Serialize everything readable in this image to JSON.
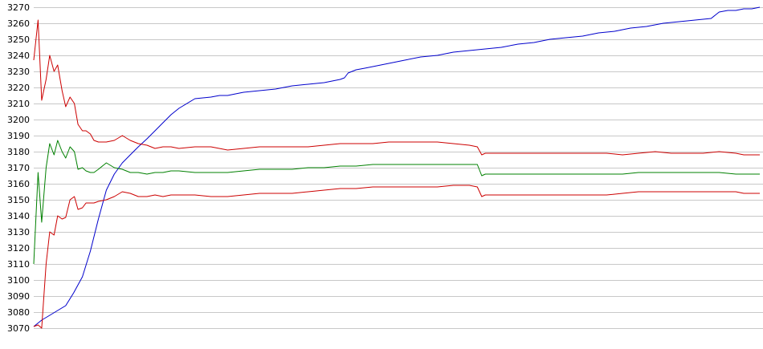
{
  "chart_data": {
    "type": "line",
    "title": "",
    "xlabel": "",
    "ylabel": "",
    "ylim": [
      3070,
      3270
    ],
    "y_ticks": [
      3070,
      3080,
      3090,
      3100,
      3110,
      3120,
      3130,
      3140,
      3150,
      3160,
      3170,
      3180,
      3190,
      3200,
      3210,
      3220,
      3230,
      3240,
      3250,
      3260,
      3270
    ],
    "xlim": [
      0,
      100
    ],
    "grid": true,
    "legend": "none",
    "series": [
      {
        "color": "#0000cc",
        "x": [
          0,
          1.1,
          2.2,
          3.3,
          4.4,
          5.5,
          6.7,
          7.8,
          8.9,
          10.0,
          11.1,
          12.2,
          13.3,
          14.4,
          15.6,
          16.7,
          17.8,
          18.9,
          20.0,
          22.2,
          24.4,
          25.6,
          26.7,
          27.8,
          28.9,
          31.1,
          33.3,
          35.6,
          37.8,
          40.0,
          42.2,
          42.8,
          43.3,
          44.4,
          45.6,
          46.7,
          48.9,
          51.1,
          53.3,
          55.6,
          57.8,
          60.0,
          62.2,
          64.4,
          66.7,
          68.9,
          71.1,
          73.3,
          75.6,
          77.8,
          80.0,
          82.2,
          84.4,
          86.7,
          88.9,
          91.1,
          93.3,
          94.4,
          95.6,
          96.7,
          97.8,
          98.9,
          100
        ],
        "values": [
          3071,
          3075,
          3078,
          3081,
          3084,
          3092,
          3102,
          3118,
          3138,
          3156,
          3166,
          3173,
          3178,
          3183,
          3188,
          3193,
          3198,
          3203,
          3207,
          3213,
          3214,
          3215,
          3215,
          3216,
          3217,
          3218,
          3219,
          3221,
          3222,
          3223,
          3225,
          3226,
          3229,
          3231,
          3232,
          3233,
          3235,
          3237,
          3239,
          3240,
          3242,
          3243,
          3244,
          3245,
          3247,
          3248,
          3250,
          3251,
          3252,
          3254,
          3255,
          3257,
          3258,
          3260,
          3261,
          3262,
          3263,
          3267,
          3268,
          3268,
          3269,
          3269,
          3270
        ]
      },
      {
        "color": "#cc0000",
        "x": [
          0,
          0.6,
          1.1,
          1.7,
          2.2,
          2.8,
          3.3,
          3.9,
          4.4,
          5.0,
          5.6,
          6.1,
          6.7,
          7.2,
          7.8,
          8.3,
          8.9,
          10.0,
          11.1,
          12.2,
          13.3,
          14.4,
          15.6,
          16.7,
          17.8,
          18.9,
          20.0,
          22.2,
          24.4,
          26.7,
          28.9,
          31.1,
          33.3,
          35.6,
          37.8,
          40.0,
          42.2,
          44.4,
          46.7,
          48.9,
          51.1,
          53.3,
          55.6,
          57.8,
          60.0,
          61.1,
          61.7,
          62.2,
          63.3,
          65.6,
          67.8,
          70.0,
          72.2,
          74.4,
          76.7,
          78.9,
          81.1,
          83.3,
          85.6,
          87.8,
          90.0,
          92.2,
          94.4,
          96.7,
          97.8,
          98.9,
          100
        ],
        "values": [
          3237,
          3262,
          3212,
          3225,
          3240,
          3230,
          3234,
          3218,
          3208,
          3214,
          3210,
          3197,
          3193,
          3193,
          3191,
          3187,
          3186,
          3186,
          3187,
          3190,
          3187,
          3185,
          3184,
          3182,
          3183,
          3183,
          3182,
          3183,
          3183,
          3181,
          3182,
          3183,
          3183,
          3183,
          3183,
          3184,
          3185,
          3185,
          3185,
          3186,
          3186,
          3186,
          3186,
          3185,
          3184,
          3183,
          3178,
          3179,
          3179,
          3179,
          3179,
          3179,
          3179,
          3179,
          3179,
          3179,
          3178,
          3179,
          3180,
          3179,
          3179,
          3179,
          3180,
          3179,
          3178,
          3178,
          3178
        ]
      },
      {
        "color": "#008000",
        "x": [
          0,
          0.6,
          1.1,
          1.7,
          2.2,
          2.8,
          3.3,
          3.9,
          4.4,
          5.0,
          5.6,
          6.1,
          6.7,
          7.2,
          7.8,
          8.3,
          8.9,
          10.0,
          11.1,
          12.2,
          13.3,
          14.4,
          15.6,
          16.7,
          17.8,
          18.9,
          20.0,
          22.2,
          24.4,
          26.7,
          28.9,
          31.1,
          33.3,
          35.6,
          37.8,
          40.0,
          42.2,
          44.4,
          46.7,
          48.9,
          51.1,
          53.3,
          55.6,
          57.8,
          60.0,
          61.1,
          61.7,
          62.2,
          63.3,
          65.6,
          67.8,
          70.0,
          72.2,
          74.4,
          76.7,
          78.9,
          81.1,
          83.3,
          85.6,
          87.8,
          90.0,
          92.2,
          94.4,
          96.7,
          97.8,
          98.9,
          100
        ],
        "values": [
          3110,
          3167,
          3136,
          3170,
          3185,
          3178,
          3187,
          3180,
          3176,
          3183,
          3180,
          3169,
          3170,
          3168,
          3167,
          3167,
          3169,
          3173,
          3170,
          3169,
          3167,
          3167,
          3166,
          3167,
          3167,
          3168,
          3168,
          3167,
          3167,
          3167,
          3168,
          3169,
          3169,
          3169,
          3170,
          3170,
          3171,
          3171,
          3172,
          3172,
          3172,
          3172,
          3172,
          3172,
          3172,
          3172,
          3165,
          3166,
          3166,
          3166,
          3166,
          3166,
          3166,
          3166,
          3166,
          3166,
          3166,
          3167,
          3167,
          3167,
          3167,
          3167,
          3167,
          3166,
          3166,
          3166,
          3166
        ]
      },
      {
        "color": "#cc0000",
        "x": [
          0,
          0.6,
          1.1,
          1.7,
          2.2,
          2.8,
          3.3,
          3.9,
          4.4,
          5.0,
          5.6,
          6.1,
          6.7,
          7.2,
          7.8,
          8.3,
          8.9,
          10.0,
          11.1,
          12.2,
          13.3,
          14.4,
          15.6,
          16.7,
          17.8,
          18.9,
          20.0,
          22.2,
          24.4,
          26.7,
          28.9,
          31.1,
          33.3,
          35.6,
          37.8,
          40.0,
          42.2,
          44.4,
          46.7,
          48.9,
          51.1,
          53.3,
          55.6,
          57.8,
          60.0,
          61.1,
          61.7,
          62.2,
          63.3,
          65.6,
          67.8,
          70.0,
          72.2,
          74.4,
          76.7,
          78.9,
          81.1,
          83.3,
          85.6,
          87.8,
          90.0,
          92.2,
          94.4,
          96.7,
          97.8,
          98.9,
          100
        ],
        "values": [
          3071,
          3072,
          3070,
          3110,
          3130,
          3128,
          3140,
          3138,
          3139,
          3150,
          3152,
          3144,
          3145,
          3148,
          3148,
          3148,
          3149,
          3150,
          3152,
          3155,
          3154,
          3152,
          3152,
          3153,
          3152,
          3153,
          3153,
          3153,
          3152,
          3152,
          3153,
          3154,
          3154,
          3154,
          3155,
          3156,
          3157,
          3157,
          3158,
          3158,
          3158,
          3158,
          3158,
          3159,
          3159,
          3158,
          3152,
          3153,
          3153,
          3153,
          3153,
          3153,
          3153,
          3153,
          3153,
          3153,
          3154,
          3155,
          3155,
          3155,
          3155,
          3155,
          3155,
          3155,
          3154,
          3154,
          3154
        ]
      }
    ]
  }
}
